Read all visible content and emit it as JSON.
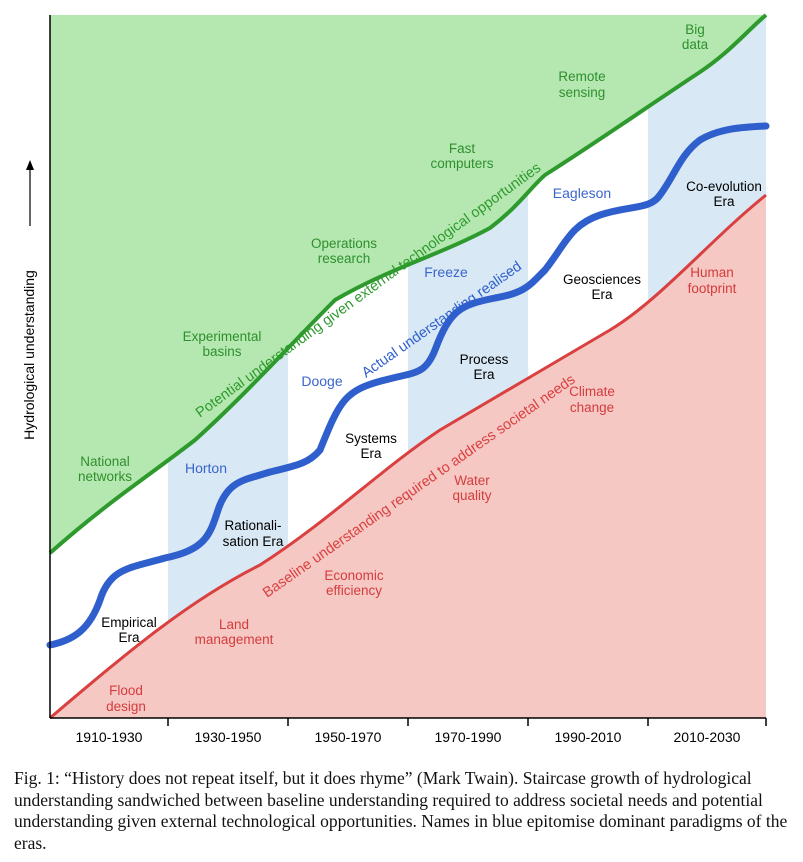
{
  "figure": {
    "y_axis_label": "Hydrological understanding",
    "x_ticks": [
      "1910-1930",
      "1930-1950",
      "1950-1970",
      "1970-1990",
      "1990-2010",
      "2010-2030"
    ],
    "curves": {
      "potential": "Potential understanding given external technological opportunities",
      "actual": "Actual understanding realised",
      "baseline": "Baseline understanding required to address societal needs"
    },
    "eras": [
      {
        "id": "empirical",
        "line1": "Empirical",
        "line2": "Era"
      },
      {
        "id": "rationalisation",
        "line1": "Rationali-",
        "line2": "sation Era"
      },
      {
        "id": "systems",
        "line1": "Systems",
        "line2": "Era"
      },
      {
        "id": "process",
        "line1": "Process",
        "line2": "Era"
      },
      {
        "id": "geosciences",
        "line1": "Geosciences",
        "line2": "Era"
      },
      {
        "id": "coevolution",
        "line1": "Co-evolution",
        "line2": "Era"
      }
    ],
    "paradigms": [
      "Horton",
      "Dooge",
      "Freeze",
      "Eagleson"
    ],
    "technology": [
      {
        "id": "national-networks",
        "line1": "National",
        "line2": "networks"
      },
      {
        "id": "experimental-basins",
        "line1": "Experimental",
        "line2": "basins"
      },
      {
        "id": "operations-research",
        "line1": "Operations",
        "line2": "research"
      },
      {
        "id": "fast-computers",
        "line1": "Fast",
        "line2": "computers"
      },
      {
        "id": "remote-sensing",
        "line1": "Remote",
        "line2": "sensing"
      },
      {
        "id": "big-data",
        "line1": "Big",
        "line2": "data"
      }
    ],
    "societal_needs": [
      {
        "id": "flood-design",
        "line1": "Flood",
        "line2": "design"
      },
      {
        "id": "land-management",
        "line1": "Land",
        "line2": "management"
      },
      {
        "id": "economic-efficiency",
        "line1": "Economic",
        "line2": "efficiency"
      },
      {
        "id": "water-quality",
        "line1": "Water",
        "line2": "quality"
      },
      {
        "id": "climate-change",
        "line1": "Climate",
        "line2": "change"
      },
      {
        "id": "human-footprint",
        "line1": "Human",
        "line2": "footprint"
      }
    ],
    "colors": {
      "potential_line": "#2e9a2e",
      "potential_fill": "#b5e8b0",
      "actual_line": "#2f5fcc",
      "baseline_line": "#d94040",
      "baseline_fill": "#f6c8c4",
      "era_band": "#d8e8f4",
      "paradigm_text": "#3a66cc",
      "technology_text": "#2e8f2e",
      "needs_text": "#d43c3c"
    }
  },
  "caption": "Fig. 1: “History does not repeat itself, but it does rhyme” (Mark Twain). Staircase growth of hydrological understanding sandwiched between baseline understanding required to address societal needs and potential understanding given external technological opportunities. Names in blue epitomise dominant paradigms of the eras."
}
